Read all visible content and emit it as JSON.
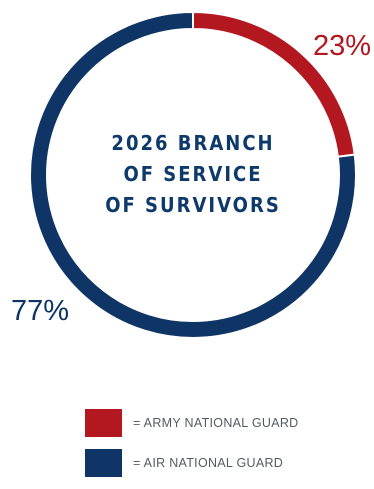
{
  "chart_data": {
    "type": "pie",
    "donut": true,
    "title_lines": [
      "2026 BRANCH",
      "OF SERVICE",
      "OF SURVIVORS"
    ],
    "slices": [
      {
        "name": "= ARMY NATIONAL GUARD",
        "value": 23,
        "label": "23%",
        "color": "#b3171f"
      },
      {
        "name": "= AIR NATIONAL GUARD",
        "value": 77,
        "label": "77%",
        "color": "#0e3566"
      }
    ],
    "start": "top",
    "direction": "clockwise",
    "legend_position": "bottom"
  }
}
